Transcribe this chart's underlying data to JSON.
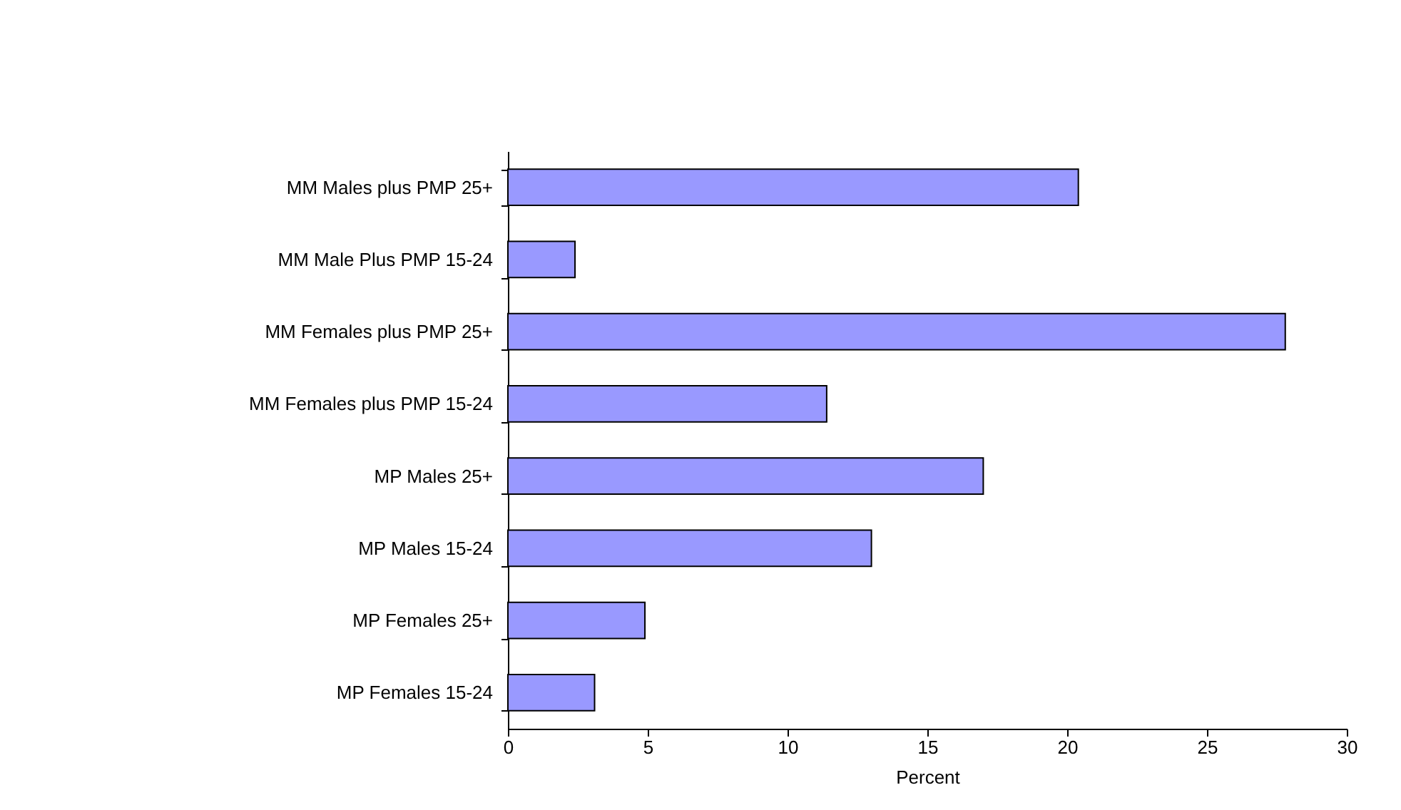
{
  "chart_data": {
    "type": "bar",
    "orientation": "horizontal",
    "xlabel": "Percent",
    "categories": [
      "MM Males plus PMP 25+",
      "MM Male Plus PMP 15-24",
      "MM Females plus PMP 25+",
      "MM Females plus PMP 15-24",
      "MP Males 25+",
      "MP Males 15-24",
      "MP Females 25+",
      "MP Females 15-24"
    ],
    "values": [
      20.4,
      2.4,
      27.8,
      11.4,
      17.0,
      13.0,
      4.9,
      3.1
    ],
    "color": "#9999ff",
    "xlim": [
      0,
      30
    ],
    "xticks": [
      0,
      5,
      10,
      15,
      20,
      25,
      30
    ],
    "grid": false,
    "legend": false
  }
}
